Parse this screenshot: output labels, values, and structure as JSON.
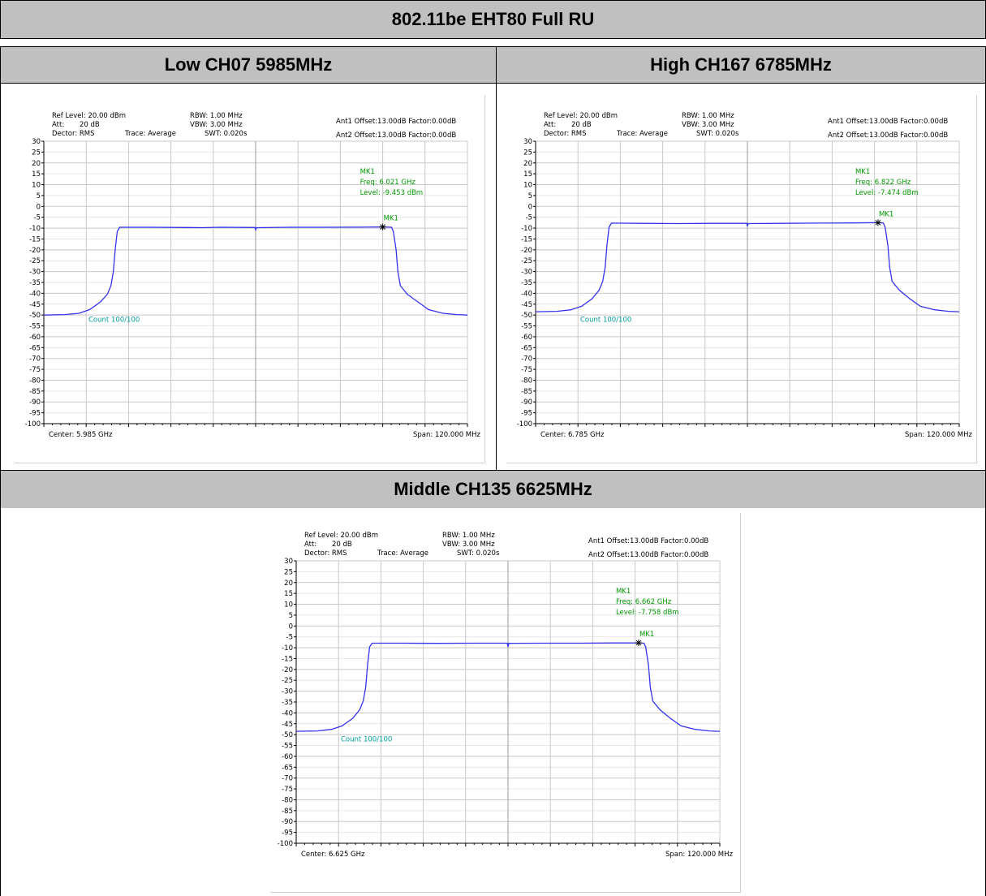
{
  "table": {
    "title": "802.11be EHT80 Full RU",
    "header_low": "Low CH07 5985MHz",
    "header_high": "High CH167 6785MHz",
    "header_mid": "Middle CH135 6625MHz"
  },
  "colors": {
    "trace": "#3333ee",
    "marker_text": "#009900",
    "count_text": "#009999",
    "grid_major": "#c8c8c8",
    "grid_minor": "#e6e6e6",
    "header_bg": "#c0c0c0"
  },
  "chart_data": [
    {
      "type": "line",
      "panel": "low",
      "info": {
        "ref_level": "Ref Level: 20.00 dBm",
        "att_label": "Att:",
        "att_value": "20 dB",
        "detector": "Dector: RMS",
        "trace": "Trace: Average",
        "rbw": "RBW: 1.00 MHz",
        "vbw": "VBW: 3.00 MHz",
        "swt": "SWT: 0.020s",
        "ant1": "Ant1 Offset:13.00dB  Factor:0.00dB",
        "ant2": "Ant2 Offset:13.00dB  Factor:0.00dB"
      },
      "center_label": "Center: 5.985 GHz",
      "span_label": "Span: 120.000 MHz",
      "count_label": "Count 100/100",
      "marker": {
        "name": "MK1",
        "freq_label": "Freq: 6.021 GHz",
        "level_label": "Level: -9.453 dBm",
        "x": 6.021,
        "y": -9.453
      },
      "x_range_ghz": [
        5.925,
        6.045
      ],
      "ylim": [
        -100,
        30
      ],
      "yticks": [
        30,
        25,
        20,
        15,
        10,
        5,
        0,
        -5,
        -10,
        -15,
        -20,
        -25,
        -30,
        -35,
        -40,
        -45,
        -50,
        -55,
        -60,
        -65,
        -70,
        -75,
        -80,
        -85,
        -90,
        -95,
        -100
      ],
      "grid": true,
      "trace_points": [
        [
          5.925,
          -50.0
        ],
        [
          5.931,
          -49.8
        ],
        [
          5.935,
          -49.2
        ],
        [
          5.938,
          -47.5
        ],
        [
          5.941,
          -44.0
        ],
        [
          5.943,
          -40.5
        ],
        [
          5.944,
          -36.5
        ],
        [
          5.9447,
          -30.0
        ],
        [
          5.9452,
          -20.0
        ],
        [
          5.9458,
          -11.5
        ],
        [
          5.9465,
          -9.6
        ],
        [
          5.955,
          -9.6
        ],
        [
          5.965,
          -9.7
        ],
        [
          5.97,
          -9.8
        ],
        [
          5.975,
          -9.6
        ],
        [
          5.9848,
          -9.7
        ],
        [
          5.985,
          -10.8
        ],
        [
          5.9852,
          -9.8
        ],
        [
          5.995,
          -9.6
        ],
        [
          6.005,
          -9.6
        ],
        [
          6.015,
          -9.55
        ],
        [
          6.021,
          -9.453
        ],
        [
          6.0235,
          -9.6
        ],
        [
          6.024,
          -11.5
        ],
        [
          6.0248,
          -20.0
        ],
        [
          6.0253,
          -30.0
        ],
        [
          6.026,
          -36.5
        ],
        [
          6.028,
          -40.5
        ],
        [
          6.031,
          -44.0
        ],
        [
          6.034,
          -47.5
        ],
        [
          6.038,
          -49.2
        ],
        [
          6.042,
          -49.8
        ],
        [
          6.045,
          -50.0
        ]
      ]
    },
    {
      "type": "line",
      "panel": "high",
      "info": {
        "ref_level": "Ref Level: 20.00 dBm",
        "att_label": "Att:",
        "att_value": "20 dB",
        "detector": "Dector: RMS",
        "trace": "Trace: Average",
        "rbw": "RBW: 1.00 MHz",
        "vbw": "VBW: 3.00 MHz",
        "swt": "SWT: 0.020s",
        "ant1": "Ant1 Offset:13.00dB  Factor:0.00dB",
        "ant2": "Ant2 Offset:13.00dB  Factor:0.00dB"
      },
      "center_label": "Center: 6.785 GHz",
      "span_label": "Span: 120.000 MHz",
      "count_label": "Count 100/100",
      "marker": {
        "name": "MK1",
        "freq_label": "Freq: 6.822 GHz",
        "level_label": "Level: -7.474 dBm",
        "x": 6.822,
        "y": -7.474
      },
      "x_range_ghz": [
        6.725,
        6.845
      ],
      "ylim": [
        -100,
        30
      ],
      "yticks": [
        30,
        25,
        20,
        15,
        10,
        5,
        0,
        -5,
        -10,
        -15,
        -20,
        -25,
        -30,
        -35,
        -40,
        -45,
        -50,
        -55,
        -60,
        -65,
        -70,
        -75,
        -80,
        -85,
        -90,
        -95,
        -100
      ],
      "grid": true,
      "trace_points": [
        [
          6.725,
          -48.5
        ],
        [
          6.731,
          -48.3
        ],
        [
          6.735,
          -47.6
        ],
        [
          6.738,
          -46.0
        ],
        [
          6.741,
          -42.5
        ],
        [
          6.743,
          -38.5
        ],
        [
          6.744,
          -34.5
        ],
        [
          6.7447,
          -28.0
        ],
        [
          6.7452,
          -18.0
        ],
        [
          6.7458,
          -9.6
        ],
        [
          6.7465,
          -7.7
        ],
        [
          6.755,
          -7.8
        ],
        [
          6.765,
          -7.9
        ],
        [
          6.775,
          -7.8
        ],
        [
          6.7848,
          -7.8
        ],
        [
          6.785,
          -9.2
        ],
        [
          6.7852,
          -7.9
        ],
        [
          6.795,
          -7.8
        ],
        [
          6.805,
          -7.7
        ],
        [
          6.815,
          -7.6
        ],
        [
          6.822,
          -7.474
        ],
        [
          6.8235,
          -7.7
        ],
        [
          6.824,
          -9.6
        ],
        [
          6.8248,
          -18.0
        ],
        [
          6.8253,
          -28.0
        ],
        [
          6.826,
          -34.5
        ],
        [
          6.828,
          -38.5
        ],
        [
          6.831,
          -42.5
        ],
        [
          6.834,
          -46.0
        ],
        [
          6.838,
          -47.6
        ],
        [
          6.842,
          -48.3
        ],
        [
          6.845,
          -48.5
        ]
      ]
    },
    {
      "type": "line",
      "panel": "middle",
      "info": {
        "ref_level": "Ref Level: 20.00 dBm",
        "att_label": "Att:",
        "att_value": "20 dB",
        "detector": "Dector: RMS",
        "trace": "Trace: Average",
        "rbw": "RBW: 1.00 MHz",
        "vbw": "VBW: 3.00 MHz",
        "swt": "SWT: 0.020s",
        "ant1": "Ant1 Offset:13.00dB  Factor:0.00dB",
        "ant2": "Ant2 Offset:13.00dB  Factor:0.00dB"
      },
      "center_label": "Center: 6.625 GHz",
      "span_label": "Span: 120.000 MHz",
      "count_label": "Count 100/100",
      "marker": {
        "name": "MK1",
        "freq_label": "Freq: 6.662 GHz",
        "level_label": "Level: -7.758 dBm",
        "x": 6.662,
        "y": -7.758
      },
      "x_range_ghz": [
        6.565,
        6.685
      ],
      "ylim": [
        -100,
        30
      ],
      "yticks": [
        30,
        25,
        20,
        15,
        10,
        5,
        0,
        -5,
        -10,
        -15,
        -20,
        -25,
        -30,
        -35,
        -40,
        -45,
        -50,
        -55,
        -60,
        -65,
        -70,
        -75,
        -80,
        -85,
        -90,
        -95,
        -100
      ],
      "grid": true,
      "trace_points": [
        [
          6.565,
          -48.5
        ],
        [
          6.571,
          -48.3
        ],
        [
          6.575,
          -47.6
        ],
        [
          6.578,
          -46.0
        ],
        [
          6.581,
          -42.5
        ],
        [
          6.583,
          -38.5
        ],
        [
          6.584,
          -34.5
        ],
        [
          6.5847,
          -28.0
        ],
        [
          6.5852,
          -18.0
        ],
        [
          6.5858,
          -9.6
        ],
        [
          6.5865,
          -7.9
        ],
        [
          6.595,
          -7.9
        ],
        [
          6.605,
          -8.0
        ],
        [
          6.615,
          -7.9
        ],
        [
          6.6248,
          -7.9
        ],
        [
          6.625,
          -9.6
        ],
        [
          6.6252,
          -8.0
        ],
        [
          6.635,
          -7.9
        ],
        [
          6.645,
          -7.9
        ],
        [
          6.655,
          -7.8
        ],
        [
          6.662,
          -7.758
        ],
        [
          6.6635,
          -7.9
        ],
        [
          6.664,
          -9.6
        ],
        [
          6.6648,
          -18.0
        ],
        [
          6.6653,
          -28.0
        ],
        [
          6.666,
          -34.5
        ],
        [
          6.668,
          -38.5
        ],
        [
          6.671,
          -42.5
        ],
        [
          6.674,
          -46.0
        ],
        [
          6.678,
          -47.6
        ],
        [
          6.682,
          -48.3
        ],
        [
          6.685,
          -48.5
        ]
      ]
    }
  ]
}
